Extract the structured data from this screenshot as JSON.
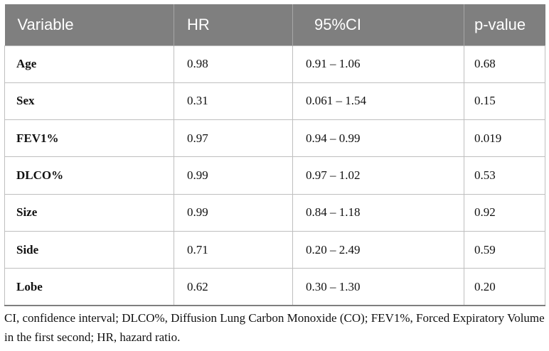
{
  "table": {
    "headers": [
      "Variable",
      "HR",
      "95%CI",
      "p-value"
    ],
    "rows": [
      {
        "variable": "Age",
        "hr": "0.98",
        "ci": "0.91 – 1.06",
        "p": "0.68"
      },
      {
        "variable": "Sex",
        "hr": "0.31",
        "ci": "0.061 – 1.54",
        "p": "0.15"
      },
      {
        "variable": "FEV1%",
        "hr": "0.97",
        "ci": "0.94 – 0.99",
        "p": "0.019"
      },
      {
        "variable": "DLCO%",
        "hr": "0.99",
        "ci": "0.97 – 1.02",
        "p": "0.53"
      },
      {
        "variable": "Size",
        "hr": "0.99",
        "ci": "0.84 – 1.18",
        "p": "0.92"
      },
      {
        "variable": "Side",
        "hr": "0.71",
        "ci": "0.20 – 2.49",
        "p": "0.59"
      },
      {
        "variable": "Lobe",
        "hr": "0.62",
        "ci": "0.30 – 1.30",
        "p": "0.20"
      }
    ]
  },
  "footnote": "CI, confidence interval; DLCO%, Diffusion Lung Carbon Monoxide (CO); FEV1%, Forced Expiratory Volume in the first second; HR, hazard ratio.",
  "colors": {
    "header_bg": "#7f7f7f",
    "header_text": "#ffffff",
    "grid": "#bfbfbf"
  }
}
